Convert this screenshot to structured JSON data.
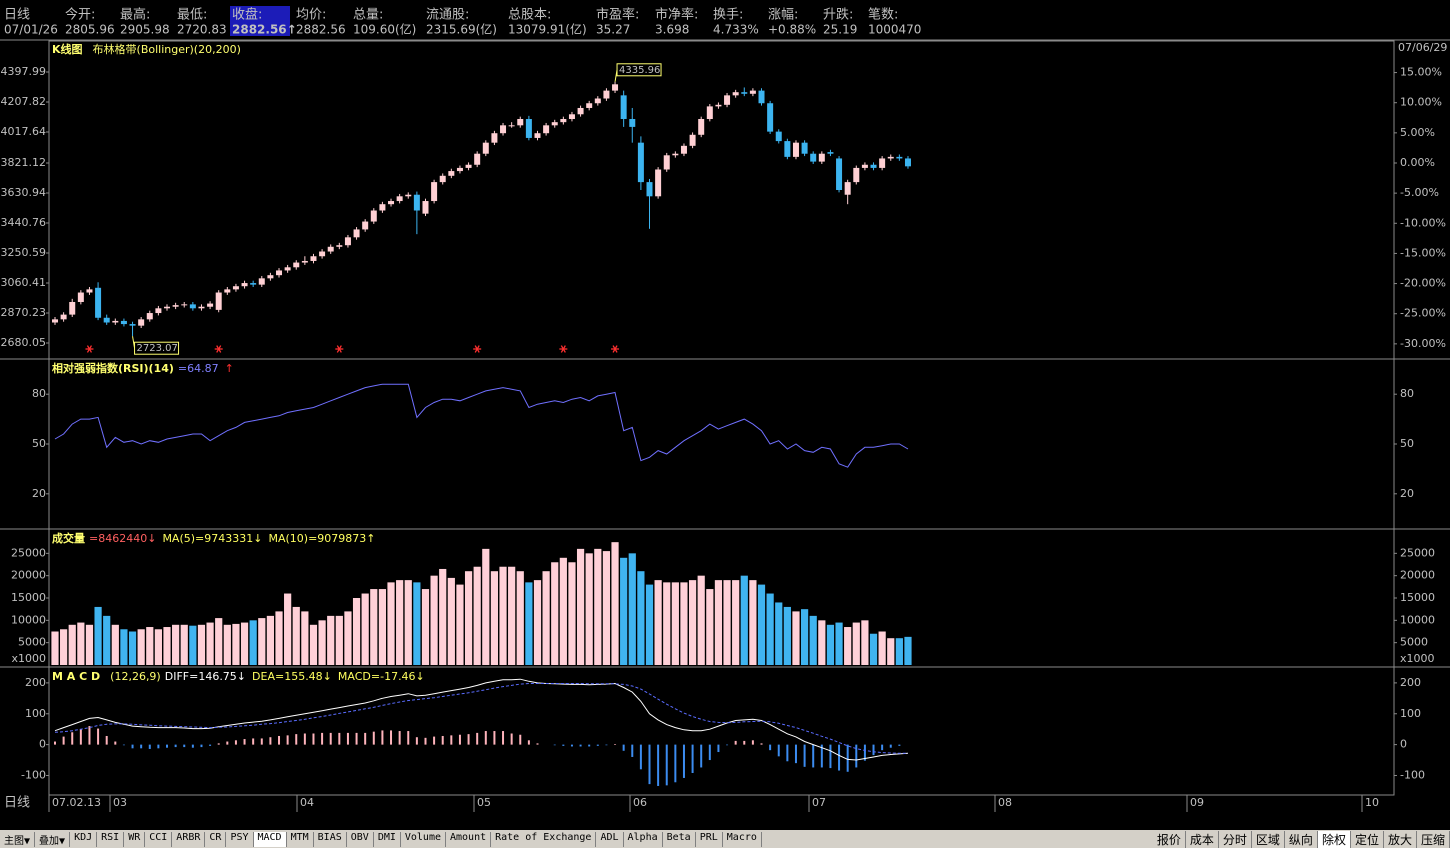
{
  "header": [
    {
      "label": "日线",
      "value": "07/01/26",
      "color": "#40c8c8"
    },
    {
      "label": "今开:",
      "value": "2805.96",
      "color": "#40c8c8"
    },
    {
      "label": "最高:",
      "value": "2905.98",
      "color": "#ff5a5a"
    },
    {
      "label": "最低:",
      "value": "2720.83",
      "color": "#40c8c8"
    },
    {
      "label": "收盘:",
      "value": "2882.56↑",
      "color": "#ff50ff",
      "selected": true
    },
    {
      "label": "均价:",
      "value": "2882.56",
      "color": "#ff5a5a"
    },
    {
      "label": "总量:",
      "value": "109.60(亿)",
      "color": "#40c8c8"
    },
    {
      "label": "流通股:",
      "value": "2315.69(亿)",
      "color": "#40c8c8"
    },
    {
      "label": "总股本:",
      "value": "13079.91(亿)",
      "color": "#40c8c8"
    },
    {
      "label": "市盈率:",
      "value": "35.27",
      "color": "#40c8c8"
    },
    {
      "label": "市净率:",
      "value": "3.698",
      "color": "#40c8c8"
    },
    {
      "label": "换手:",
      "value": "4.733%",
      "color": "#40c8c8"
    },
    {
      "label": "涨幅:",
      "value": "+0.88%",
      "color": "#ff5a5a"
    },
    {
      "label": "升跌:",
      "value": "25.19",
      "color": "#ff5a5a"
    },
    {
      "label": "笔数:",
      "value": "1000470",
      "color": "#40c8c8"
    }
  ],
  "chart_data": [
    {
      "type": "candlestick",
      "title": "K线图",
      "subtitle": "布林格带(Bollinger)(20,200)",
      "date_label": "07/06/29",
      "up_color": "#ffd0d4",
      "down_color": "#3cb4f0",
      "open": [
        2810,
        2830,
        2860,
        2940,
        3000,
        3030,
        2840,
        2810,
        2820,
        2800,
        2790,
        2830,
        2870,
        2900,
        2910,
        2920,
        2925,
        2900,
        2910,
        2890,
        3000,
        3020,
        3040,
        3060,
        3050,
        3090,
        3110,
        3140,
        3160,
        3190,
        3200,
        3230,
        3260,
        3290,
        3300,
        3350,
        3400,
        3450,
        3520,
        3560,
        3580,
        3610,
        3620,
        3500,
        3580,
        3700,
        3740,
        3770,
        3790,
        3810,
        3880,
        3950,
        4010,
        4060,
        4060,
        4100,
        3980,
        4010,
        4060,
        4080,
        4100,
        4130,
        4170,
        4200,
        4230,
        4280,
        4250,
        4100,
        3950,
        3700,
        3610,
        3780,
        3870,
        3880,
        3930,
        4000,
        4100,
        4180,
        4190,
        4250,
        4270,
        4260,
        4280,
        4200,
        4020,
        3960,
        3860,
        3950,
        3880,
        3830,
        3890,
        3850,
        3620,
        3700,
        3790,
        3810,
        3790,
        3850,
        3860,
        3850
      ],
      "high": [
        2845,
        2875,
        2960,
        3015,
        3035,
        3065,
        2860,
        2835,
        2835,
        2815,
        2845,
        2885,
        2915,
        2925,
        2935,
        2940,
        2940,
        2925,
        2945,
        3015,
        3035,
        3055,
        3075,
        3075,
        3105,
        3125,
        3155,
        3175,
        3205,
        3230,
        3245,
        3275,
        3305,
        3315,
        3365,
        3415,
        3465,
        3535,
        3575,
        3595,
        3625,
        3635,
        3640,
        3595,
        3715,
        3755,
        3785,
        3805,
        3825,
        3895,
        3965,
        4025,
        4075,
        4080,
        4115,
        4120,
        4025,
        4075,
        4095,
        4115,
        4145,
        4185,
        4215,
        4245,
        4295,
        4335.96,
        4280,
        4170,
        3990,
        3720,
        3795,
        3885,
        3895,
        3945,
        4015,
        4115,
        4195,
        4205,
        4265,
        4285,
        4300,
        4295,
        4295,
        4215,
        4035,
        3975,
        3965,
        3965,
        3895,
        3895,
        3905,
        3865,
        3715,
        3805,
        3825,
        3825,
        3865,
        3875,
        3875,
        3865
      ],
      "low": [
        2795,
        2815,
        2845,
        2925,
        2985,
        2825,
        2795,
        2795,
        2785,
        2723.07,
        2775,
        2815,
        2855,
        2885,
        2895,
        2905,
        2885,
        2885,
        2895,
        2875,
        2985,
        3005,
        3025,
        3035,
        3035,
        3075,
        3095,
        3125,
        3145,
        3175,
        3185,
        3215,
        3245,
        3275,
        3285,
        3335,
        3385,
        3435,
        3505,
        3545,
        3565,
        3595,
        3370,
        3485,
        3565,
        3685,
        3725,
        3755,
        3775,
        3795,
        3865,
        3935,
        3995,
        4045,
        4045,
        3965,
        3965,
        3995,
        4045,
        4065,
        4085,
        4115,
        4155,
        4185,
        4215,
        4265,
        4050,
        3950,
        3650,
        3404,
        3595,
        3765,
        3855,
        3865,
        3915,
        3985,
        4085,
        4165,
        4175,
        4235,
        4245,
        4245,
        4185,
        4005,
        3945,
        3845,
        3845,
        3865,
        3815,
        3815,
        3865,
        3635,
        3560,
        3685,
        3775,
        3775,
        3775,
        3835,
        3835,
        3785
      ],
      "close": [
        2830,
        2860,
        2940,
        3000,
        3020,
        2840,
        2810,
        2820,
        2800,
        2790,
        2830,
        2870,
        2900,
        2910,
        2920,
        2925,
        2900,
        2910,
        2930,
        3000,
        3020,
        3040,
        3060,
        3050,
        3090,
        3110,
        3140,
        3160,
        3190,
        3200,
        3230,
        3260,
        3290,
        3300,
        3350,
        3400,
        3450,
        3520,
        3560,
        3580,
        3610,
        3620,
        3520,
        3580,
        3700,
        3740,
        3770,
        3790,
        3810,
        3880,
        3950,
        4010,
        4060,
        4060,
        4100,
        3980,
        4010,
        4060,
        4080,
        4100,
        4130,
        4170,
        4200,
        4230,
        4280,
        4320,
        4100,
        4050,
        3700,
        3610,
        3780,
        3870,
        3880,
        3930,
        4000,
        4100,
        4180,
        4190,
        4250,
        4270,
        4260,
        4280,
        4200,
        4020,
        3960,
        3860,
        3950,
        3880,
        3830,
        3880,
        3880,
        3650,
        3700,
        3790,
        3810,
        3790,
        3850,
        3860,
        3850,
        3800
      ],
      "ylim": [
        2591.3,
        4588.2
      ],
      "yticks": [
        4397.99,
        4207.82,
        4017.64,
        3821.12,
        3630.94,
        3440.76,
        3250.59,
        3060.41,
        2870.23,
        2680.05
      ],
      "y2lim": [
        -32.18,
        20.07
      ],
      "y2ticks": [
        {
          "value": 15,
          "label": "15.00%"
        },
        {
          "value": 10,
          "label": "10.00%"
        },
        {
          "value": 5,
          "label": "5.00%"
        },
        {
          "value": 0,
          "label": "0.00%"
        },
        {
          "value": -5,
          "label": "-5.00%"
        },
        {
          "value": -10,
          "label": "-10.00%"
        },
        {
          "value": -15,
          "label": "-15.00%"
        },
        {
          "value": -20,
          "label": "-20.00%"
        },
        {
          "value": -25,
          "label": "-25.00%"
        },
        {
          "value": -30,
          "label": "-30.00%"
        }
      ]
    },
    {
      "type": "line",
      "title": "相对强弱指数(RSI)(14)",
      "legend": [
        {
          "text": "=64.87",
          "color": "#8080ff"
        },
        {
          "text": "↑",
          "color": "#ff3030"
        }
      ],
      "color": "#7070ff",
      "values": [
        53,
        56,
        62,
        65,
        65,
        66,
        48,
        54,
        51,
        52,
        50,
        52,
        51,
        53,
        54,
        55,
        56,
        56,
        52,
        55,
        58,
        60,
        63,
        64,
        65,
        66,
        67,
        69,
        70,
        71,
        72,
        74,
        76,
        78,
        80,
        82,
        84,
        85,
        86,
        86,
        86,
        86,
        66,
        72,
        75,
        77,
        77,
        76,
        78,
        80,
        82,
        83,
        84,
        83,
        82,
        72,
        74,
        75,
        76,
        75,
        77,
        78,
        76,
        79,
        80,
        81,
        58,
        60,
        40,
        42,
        46,
        44,
        48,
        52,
        55,
        58,
        62,
        59,
        61,
        63,
        65,
        62,
        58,
        50,
        52,
        47,
        50,
        46,
        45,
        48,
        47,
        38,
        36,
        44,
        48,
        48,
        49,
        50,
        50,
        47
      ],
      "ylim": [
        0,
        100
      ],
      "yticks": [
        80,
        50,
        20
      ]
    },
    {
      "type": "bar",
      "title": "成交量",
      "legend": [
        {
          "text": "=8462440↓",
          "color": "#ff6060"
        },
        {
          "text": "MA(5)=9743331↓",
          "color": "#ffff60"
        },
        {
          "text": "MA(10)=9079873↑",
          "color": "#ffff60"
        }
      ],
      "up_color": "#ffd0d8",
      "down_color": "#40b4f0",
      "unit_label": "x1000",
      "values": [
        7500,
        8000,
        9000,
        9500,
        9000,
        13000,
        11000,
        9000,
        8000,
        7500,
        8000,
        8500,
        8000,
        8500,
        9000,
        9000,
        8800,
        9000,
        9500,
        10500,
        9000,
        9200,
        9500,
        10000,
        10500,
        11000,
        12000,
        16000,
        13000,
        12000,
        9000,
        10000,
        11000,
        11000,
        12000,
        15000,
        16000,
        17000,
        17000,
        18500,
        19000,
        19000,
        18500,
        17000,
        20000,
        21500,
        19500,
        18000,
        21000,
        22000,
        26000,
        21000,
        22000,
        22000,
        21000,
        18500,
        19000,
        21000,
        23000,
        24000,
        23000,
        26000,
        25000,
        26000,
        25500,
        27500,
        24000,
        25000,
        21000,
        18000,
        19000,
        18500,
        18500,
        18500,
        19000,
        20000,
        17000,
        19000,
        19000,
        19000,
        20000,
        19000,
        18000,
        16000,
        14000,
        13000,
        12000,
        12500,
        11000,
        10000,
        9000,
        9500,
        8500,
        9500,
        10000,
        7000,
        7500,
        6000,
        6000,
        6300
      ],
      "ylim": [
        0,
        30000
      ],
      "yticks": [
        25000,
        20000,
        15000,
        10000,
        5000
      ]
    },
    {
      "type": "macd",
      "title": "M A C D",
      "subtitle": "(12,26,9)",
      "legend": [
        {
          "text": "DIFF=146.75↓",
          "color": "#ffffff"
        },
        {
          "text": "DEA=155.48↓",
          "color": "#ffff60"
        },
        {
          "text": "MACD=-17.46↓",
          "color": "#ffff60"
        }
      ],
      "series": [
        {
          "color": "#ffffff",
          "values": [
            45,
            55,
            65,
            75,
            85,
            88,
            80,
            72,
            66,
            60,
            58,
            56,
            55,
            55,
            55,
            54,
            52,
            52,
            53,
            58,
            62,
            66,
            70,
            73,
            76,
            80,
            85,
            90,
            95,
            100,
            105,
            110,
            115,
            120,
            125,
            130,
            135,
            142,
            150,
            156,
            160,
            165,
            158,
            160,
            165,
            170,
            175,
            180,
            185,
            192,
            200,
            205,
            210,
            210,
            212,
            205,
            200,
            198,
            197,
            196,
            195,
            195,
            194,
            195,
            196,
            198,
            185,
            170,
            140,
            100,
            80,
            65,
            55,
            48,
            45,
            45,
            50,
            60,
            70,
            78,
            80,
            82,
            78,
            65,
            50,
            35,
            25,
            10,
            0,
            -10,
            -20,
            -35,
            -48,
            -50,
            -45,
            -40,
            -35,
            -32,
            -30,
            -28
          ]
        },
        {
          "color": "#5a6cff",
          "values": [
            40,
            42,
            45,
            50,
            55,
            62,
            66,
            67,
            67,
            66,
            64,
            63,
            61,
            60,
            59,
            58,
            57,
            56,
            55,
            56,
            57,
            59,
            61,
            63,
            66,
            68,
            71,
            75,
            78,
            82,
            87,
            91,
            96,
            101,
            106,
            111,
            116,
            121,
            127,
            133,
            138,
            143,
            146,
            149,
            152,
            156,
            160,
            164,
            168,
            173,
            178,
            183,
            188,
            192,
            196,
            198,
            198,
            198,
            198,
            198,
            198,
            198,
            197,
            197,
            197,
            197,
            195,
            190,
            180,
            164,
            147,
            131,
            116,
            102,
            91,
            82,
            75,
            72,
            71,
            72,
            74,
            75,
            76,
            74,
            69,
            62,
            55,
            46,
            37,
            27,
            18,
            7,
            -4,
            -13,
            -19,
            -23,
            -26,
            -27,
            -28,
            -28
          ]
        },
        {
          "up_color": "#ffb4bc",
          "down_color": "#3c8cf0",
          "values": [
            10,
            26,
            40,
            50,
            60,
            52,
            28,
            10,
            -2,
            -12,
            -12,
            -14,
            -12,
            -10,
            -8,
            -8,
            -10,
            -8,
            -4,
            4,
            10,
            14,
            18,
            20,
            20,
            24,
            28,
            30,
            34,
            36,
            36,
            38,
            38,
            38,
            38,
            38,
            38,
            42,
            46,
            46,
            44,
            44,
            24,
            22,
            26,
            28,
            30,
            32,
            34,
            38,
            44,
            44,
            44,
            36,
            32,
            14,
            4,
            0,
            -2,
            -4,
            -6,
            -6,
            -6,
            -4,
            -2,
            2,
            -20,
            -40,
            -80,
            -128,
            -134,
            -132,
            -122,
            -108,
            -92,
            -74,
            -50,
            -24,
            -2,
            12,
            12,
            14,
            4,
            -18,
            -38,
            -54,
            -60,
            -72,
            -74,
            -74,
            -76,
            -84,
            -88,
            -74,
            -52,
            -34,
            -18,
            -10,
            -4,
            0
          ]
        }
      ],
      "ylim": [
        -160,
        245
      ],
      "yticks": [
        200,
        100,
        0,
        -100
      ]
    }
  ],
  "x_axis": {
    "period": "日线",
    "labels": [
      "07.02.13",
      "03",
      "04",
      "05",
      "06",
      "07",
      "08",
      "09",
      "10"
    ]
  },
  "toolbar": {
    "left": [
      "主图▼",
      "叠加▼",
      "KDJ",
      "RSI",
      "WR",
      "CCI",
      "ARBR",
      "CR",
      "PSY",
      "MACD",
      "MTM",
      "BIAS",
      "OBV",
      "DMI",
      "Volume",
      "Amount",
      "Rate of Exchange",
      "ADL",
      "Alpha",
      "Beta",
      "PRL",
      "Macro"
    ],
    "right": [
      "报价",
      "成本",
      "分时",
      "区域",
      "纵向",
      "除权",
      "定位",
      "放大",
      "压缩"
    ],
    "selected": [
      "MACD",
      "除权"
    ]
  }
}
